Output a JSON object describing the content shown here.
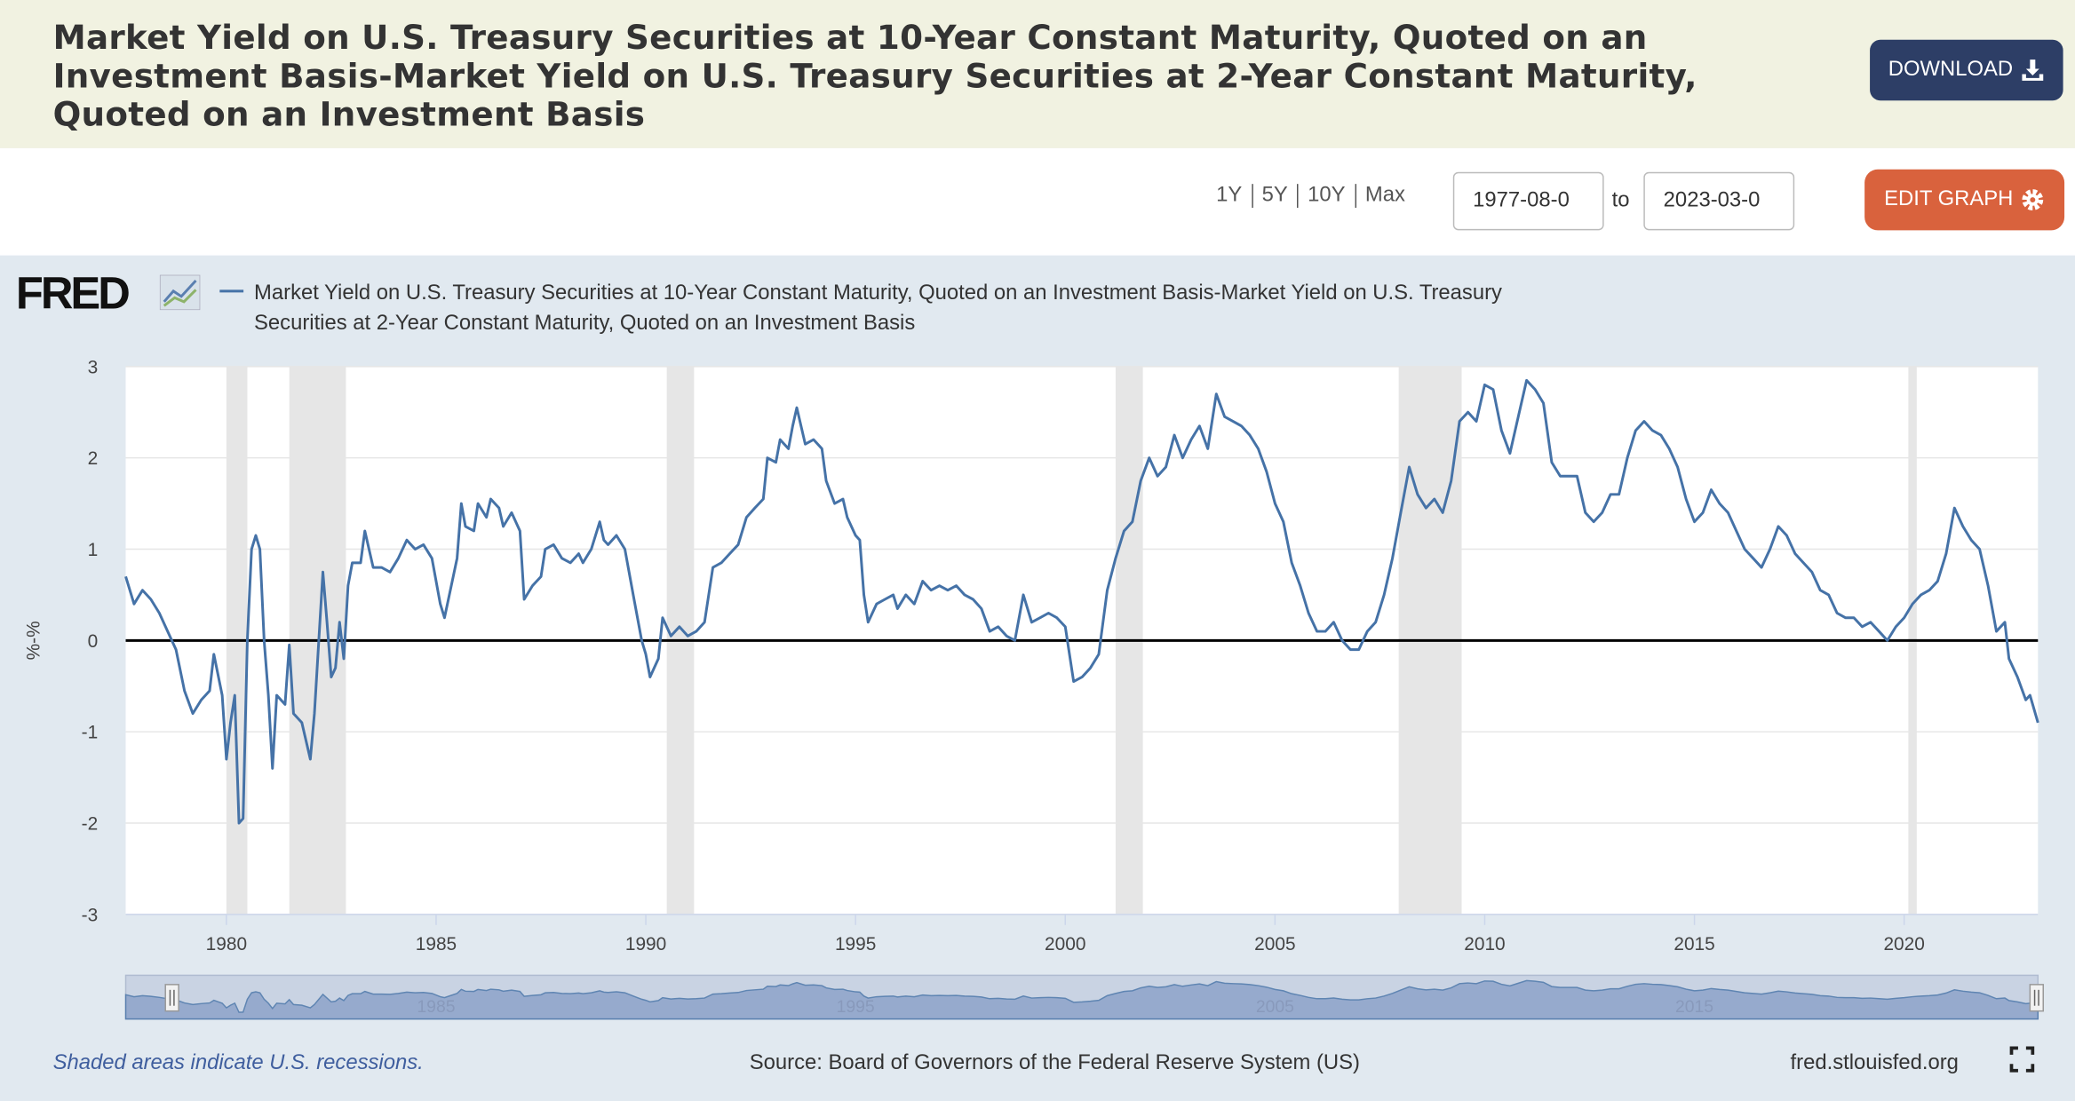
{
  "header": {
    "title": "Market Yield on U.S. Treasury Securities at 10-Year Constant Maturity, Quoted on an Investment Basis-Market Yield on U.S. Treasury Securities at 2-Year Constant Maturity, Quoted on an Investment Basis",
    "download": "DOWNLOAD"
  },
  "controls": {
    "ranges": [
      "1Y",
      "5Y",
      "10Y",
      "Max"
    ],
    "start": "1977-08-0",
    "to": "to",
    "end": "2023-03-0",
    "edit": "EDIT GRAPH"
  },
  "chart_data": {
    "type": "line",
    "logo": "FRED",
    "ylabel": "%-%",
    "xlim": [
      1977.6,
      2023.19
    ],
    "xticks": [
      1980,
      1985,
      1990,
      1995,
      2000,
      2005,
      2010,
      2015,
      2020
    ],
    "ylim": [
      -3,
      3
    ],
    "yticks": [
      -3,
      -2,
      -1,
      0,
      1,
      2,
      3
    ],
    "grid": true,
    "recessions": [
      [
        1980.0,
        1980.5
      ],
      [
        1981.5,
        1982.85
      ],
      [
        1990.5,
        1991.15
      ],
      [
        2001.2,
        2001.85
      ],
      [
        2007.95,
        2009.45
      ],
      [
        2020.1,
        2020.3
      ]
    ],
    "x": [
      1977.6,
      1977.8,
      1978.0,
      1978.2,
      1978.4,
      1978.6,
      1978.8,
      1979.0,
      1979.2,
      1979.4,
      1979.6,
      1979.7,
      1979.9,
      1980.0,
      1980.1,
      1980.2,
      1980.3,
      1980.4,
      1980.5,
      1980.6,
      1980.7,
      1980.8,
      1980.9,
      1981.0,
      1981.1,
      1981.2,
      1981.4,
      1981.5,
      1981.6,
      1981.8,
      1982.0,
      1982.1,
      1982.3,
      1982.4,
      1982.5,
      1982.6,
      1982.7,
      1982.8,
      1982.9,
      1983.0,
      1983.2,
      1983.3,
      1983.5,
      1983.7,
      1983.9,
      1984.1,
      1984.3,
      1984.5,
      1984.7,
      1984.9,
      1985.1,
      1985.2,
      1985.5,
      1985.6,
      1985.7,
      1985.9,
      1986.0,
      1986.2,
      1986.3,
      1986.5,
      1986.6,
      1986.8,
      1987.0,
      1987.1,
      1987.3,
      1987.5,
      1987.6,
      1987.8,
      1988.0,
      1988.2,
      1988.4,
      1988.5,
      1988.7,
      1988.9,
      1989.0,
      1989.1,
      1989.3,
      1989.5,
      1989.7,
      1989.9,
      1990.0,
      1990.1,
      1990.3,
      1990.4,
      1990.6,
      1990.8,
      1991.0,
      1991.2,
      1991.4,
      1991.6,
      1991.8,
      1992.0,
      1992.2,
      1992.4,
      1992.6,
      1992.8,
      1992.9,
      1993.1,
      1993.2,
      1993.4,
      1993.5,
      1993.6,
      1993.8,
      1994.0,
      1994.2,
      1994.3,
      1994.5,
      1994.7,
      1994.8,
      1995.0,
      1995.1,
      1995.2,
      1995.3,
      1995.5,
      1995.7,
      1995.9,
      1996.0,
      1996.2,
      1996.4,
      1996.6,
      1996.8,
      1997.0,
      1997.2,
      1997.4,
      1997.6,
      1997.8,
      1998.0,
      1998.2,
      1998.4,
      1998.6,
      1998.8,
      1999.0,
      1999.2,
      1999.4,
      1999.6,
      1999.8,
      2000.0,
      2000.2,
      2000.4,
      2000.6,
      2000.8,
      2001.0,
      2001.2,
      2001.4,
      2001.6,
      2001.8,
      2002.0,
      2002.2,
      2002.4,
      2002.6,
      2002.8,
      2003.0,
      2003.2,
      2003.4,
      2003.6,
      2003.8,
      2004.0,
      2004.2,
      2004.4,
      2004.6,
      2004.8,
      2005.0,
      2005.2,
      2005.4,
      2005.6,
      2005.8,
      2006.0,
      2006.2,
      2006.4,
      2006.6,
      2006.8,
      2007.0,
      2007.2,
      2007.4,
      2007.6,
      2007.8,
      2008.0,
      2008.2,
      2008.4,
      2008.6,
      2008.8,
      2009.0,
      2009.2,
      2009.4,
      2009.6,
      2009.8,
      2010.0,
      2010.2,
      2010.4,
      2010.6,
      2010.8,
      2011.0,
      2011.2,
      2011.4,
      2011.6,
      2011.8,
      2012.0,
      2012.2,
      2012.4,
      2012.6,
      2012.8,
      2013.0,
      2013.2,
      2013.4,
      2013.6,
      2013.8,
      2014.0,
      2014.2,
      2014.4,
      2014.6,
      2014.8,
      2015.0,
      2015.2,
      2015.4,
      2015.6,
      2015.8,
      2016.0,
      2016.2,
      2016.4,
      2016.6,
      2016.8,
      2017.0,
      2017.2,
      2017.4,
      2017.6,
      2017.8,
      2018.0,
      2018.2,
      2018.4,
      2018.6,
      2018.8,
      2019.0,
      2019.2,
      2019.4,
      2019.6,
      2019.8,
      2020.0,
      2020.2,
      2020.4,
      2020.6,
      2020.8,
      2021.0,
      2021.2,
      2021.4,
      2021.6,
      2021.8,
      2022.0,
      2022.2,
      2022.4,
      2022.5,
      2022.7,
      2022.9,
      2023.0,
      2023.19
    ],
    "series": [
      {
        "name": "Market Yield on U.S. Treasury Securities at 10-Year Constant Maturity, Quoted on an Investment Basis-Market Yield on U.S. Treasury Securities at 2-Year Constant Maturity, Quoted on an Investment Basis",
        "color": "#4572a7",
        "values": [
          0.7,
          0.4,
          0.55,
          0.45,
          0.3,
          0.1,
          -0.1,
          -0.55,
          -0.8,
          -0.65,
          -0.55,
          -0.15,
          -0.6,
          -1.3,
          -0.9,
          -0.6,
          -2.0,
          -1.95,
          0.0,
          1.0,
          1.15,
          1.0,
          0.0,
          -0.6,
          -1.4,
          -0.6,
          -0.7,
          -0.05,
          -0.8,
          -0.9,
          -1.3,
          -0.8,
          0.75,
          0.2,
          -0.4,
          -0.3,
          0.2,
          -0.2,
          0.6,
          0.85,
          0.85,
          1.2,
          0.8,
          0.8,
          0.75,
          0.9,
          1.1,
          1.0,
          1.05,
          0.9,
          0.4,
          0.25,
          0.9,
          1.5,
          1.25,
          1.2,
          1.5,
          1.35,
          1.55,
          1.45,
          1.25,
          1.4,
          1.2,
          0.45,
          0.6,
          0.7,
          1.0,
          1.05,
          0.9,
          0.85,
          0.95,
          0.85,
          1.0,
          1.3,
          1.1,
          1.05,
          1.15,
          1.0,
          0.5,
          0.0,
          -0.15,
          -0.4,
          -0.2,
          0.25,
          0.05,
          0.15,
          0.05,
          0.1,
          0.2,
          0.8,
          0.85,
          0.95,
          1.05,
          1.35,
          1.45,
          1.55,
          2.0,
          1.95,
          2.2,
          2.1,
          2.35,
          2.55,
          2.15,
          2.2,
          2.1,
          1.75,
          1.5,
          1.55,
          1.35,
          1.15,
          1.1,
          0.5,
          0.2,
          0.4,
          0.45,
          0.5,
          0.35,
          0.5,
          0.4,
          0.65,
          0.55,
          0.6,
          0.55,
          0.6,
          0.5,
          0.45,
          0.35,
          0.1,
          0.15,
          0.05,
          0.0,
          0.5,
          0.2,
          0.25,
          0.3,
          0.25,
          0.15,
          -0.45,
          -0.4,
          -0.3,
          -0.15,
          0.55,
          0.9,
          1.2,
          1.3,
          1.75,
          2.0,
          1.8,
          1.9,
          2.25,
          2.0,
          2.2,
          2.35,
          2.1,
          2.7,
          2.45,
          2.4,
          2.35,
          2.25,
          2.1,
          1.85,
          1.5,
          1.3,
          0.85,
          0.6,
          0.3,
          0.1,
          0.1,
          0.2,
          0.0,
          -0.1,
          -0.1,
          0.1,
          0.2,
          0.5,
          0.9,
          1.4,
          1.9,
          1.6,
          1.45,
          1.55,
          1.4,
          1.75,
          2.4,
          2.5,
          2.4,
          2.8,
          2.75,
          2.3,
          2.05,
          2.45,
          2.85,
          2.75,
          2.6,
          1.95,
          1.8,
          1.8,
          1.8,
          1.4,
          1.3,
          1.4,
          1.6,
          1.6,
          2.0,
          2.3,
          2.4,
          2.3,
          2.25,
          2.1,
          1.9,
          1.55,
          1.3,
          1.4,
          1.65,
          1.5,
          1.4,
          1.2,
          1.0,
          0.9,
          0.8,
          1.0,
          1.25,
          1.15,
          0.95,
          0.85,
          0.75,
          0.55,
          0.5,
          0.3,
          0.25,
          0.25,
          0.15,
          0.2,
          0.1,
          0.0,
          0.15,
          0.25,
          0.4,
          0.5,
          0.55,
          0.65,
          0.95,
          1.45,
          1.25,
          1.1,
          1.0,
          0.6,
          0.1,
          0.2,
          -0.2,
          -0.4,
          -0.65,
          -0.6,
          -0.9
        ]
      }
    ]
  },
  "footer": {
    "note": "Shaded areas indicate U.S. recessions.",
    "source": "Source: Board of Governors of the Federal Reserve System (US)",
    "site": "fred.stlouisfed.org"
  }
}
